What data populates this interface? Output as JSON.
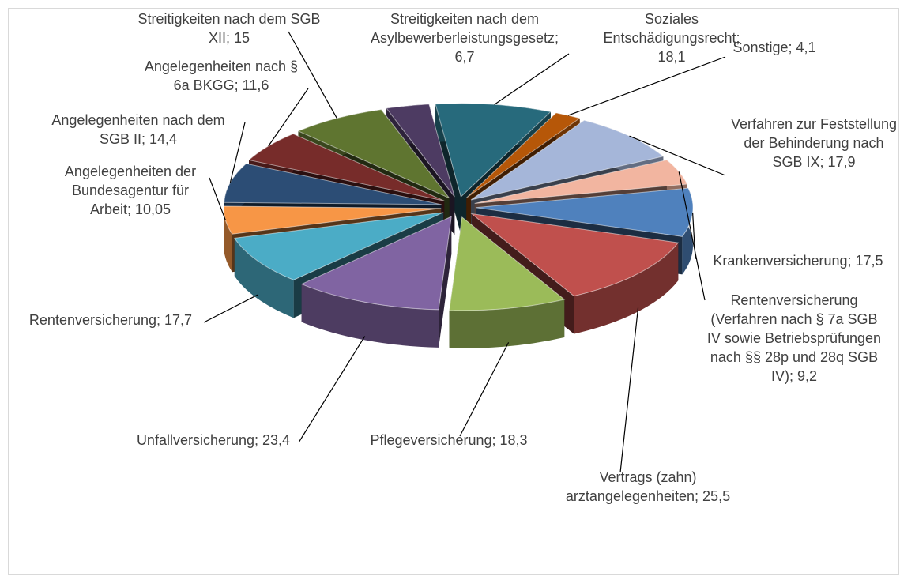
{
  "chart_data": {
    "type": "pie3d",
    "labels": [
      "Krankenversicherung; 17,5",
      "Vertrags (zahn) arztangelegenheiten; 25,5",
      "Pflegeversicherung; 18,3",
      "Unfallversicherung; 23,4",
      "Rentenversicherung; 17,7",
      "Angelegenheiten der Bundesagentur für Arbeit; 10,05",
      "Angelegenheiten nach dem SGB II; 14,4",
      "Angelegenheiten nach § 6a BKGG; 11,6",
      "Streitigkeiten nach dem SGB XII; 15",
      "Streitigkeiten nach dem Asylbewerberleistungsgesetz; 6,7",
      "Soziales Entschädigungsrecht; 18,1",
      "Sonstige; 4,1",
      "Verfahren zur Feststellung der Behinderung nach SGB IX; 17,9",
      "Rentenversicherung (Verfahren nach § 7a SGB IV sowie Betriebsprüfungen nach §§ 28p und 28q SGB IV); 9,2"
    ],
    "values": [
      17.5,
      25.5,
      18.3,
      23.4,
      17.7,
      10.05,
      14.4,
      11.6,
      15,
      6.7,
      18.1,
      4.1,
      17.9,
      9.2
    ],
    "colors": [
      "#4f81bd",
      "#c0504d",
      "#9bbb59",
      "#8064a2",
      "#4bacc6",
      "#f79646",
      "#2c4d75",
      "#772c2a",
      "#5f7530",
      "#4d3b62",
      "#276a7c",
      "#b65708",
      "#a5b6d9",
      "#f2b5a0"
    ]
  }
}
